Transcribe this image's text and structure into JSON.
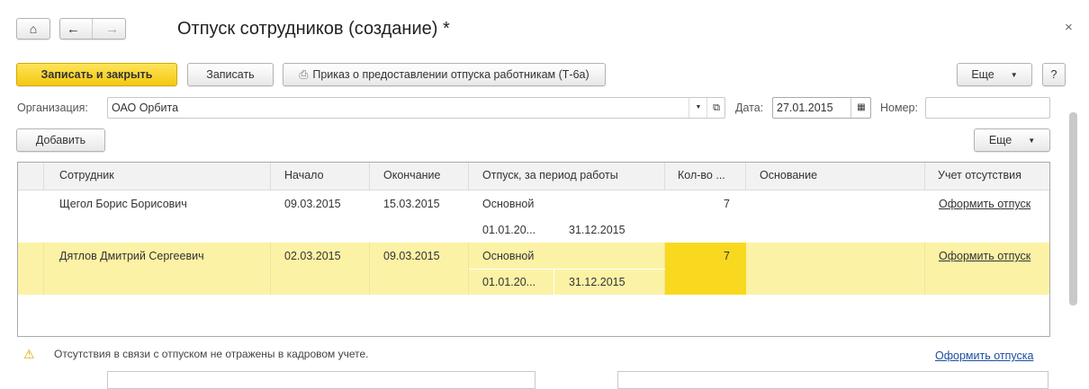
{
  "header": {
    "title": "Отпуск сотрудников (создание) *",
    "home_icon": "home-icon",
    "back_icon": "arrow-left-icon",
    "forward_icon": "arrow-right-icon",
    "close_icon": "close-icon",
    "close_glyph": "×"
  },
  "toolbar": {
    "save_close": "Записать и закрыть",
    "save": "Записать",
    "print_order": "Приказ о предоставлении отпуска работникам (Т-6а)",
    "more": "Еще",
    "help": "?"
  },
  "form": {
    "org_label": "Организация:",
    "org_value": "ОАО Орбита",
    "date_label": "Дата:",
    "date_value": "27.01.2015",
    "number_label": "Номер:",
    "number_value": ""
  },
  "table_toolbar": {
    "add": "Добавить",
    "more": "Еще"
  },
  "table": {
    "columns": [
      "Сотрудник",
      "Начало",
      "Окончание",
      "Отпуск, за период работы",
      "Кол-во ...",
      "Основание",
      "Учет отсутствия"
    ],
    "rows": [
      {
        "employee": "Щегол Борис Борисович",
        "start": "09.03.2015",
        "end": "15.03.2015",
        "vacation_type": "Основной",
        "period_from": "01.01.20...",
        "period_to": "31.12.2015",
        "days": "7",
        "basis": "",
        "absence_link": "Оформить отпуск",
        "selected": false
      },
      {
        "employee": "Дятлов Дмитрий Сергеевич",
        "start": "02.03.2015",
        "end": "09.03.2015",
        "vacation_type": "Основной",
        "period_from": "01.01.20...",
        "period_to": "31.12.2015",
        "days": "7",
        "basis": "",
        "absence_link": "Оформить отпуск",
        "selected": true
      }
    ]
  },
  "footer": {
    "warning": "Отсутствия в связи с отпуском не отражены в кадровом учете.",
    "warning_icon": "warning-icon",
    "link": "Оформить отпуска"
  },
  "colors": {
    "accent_yellow": "#f5c810",
    "row_highlight": "#fcf2a6",
    "cell_active": "#f9d91f"
  }
}
